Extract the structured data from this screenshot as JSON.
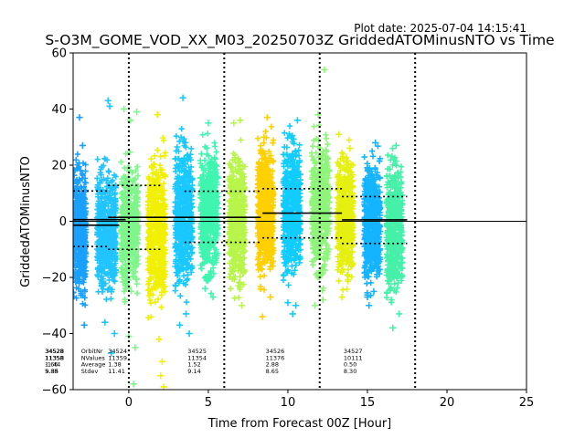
{
  "chart_data": {
    "type": "scatter",
    "title": "S-O3M_GOME_VOD_XX_M03_20250703Z GriddedATOMinusNTO vs Time",
    "plot_date": "Plot date: 2025-07-04 14:15:41",
    "xlabel": "Time from Forecast 00Z [Hour]",
    "ylabel": "GriddedATOMinusNTO",
    "xlim": [
      -3.5,
      25
    ],
    "ylim": [
      -60,
      60
    ],
    "xticks": [
      0,
      5,
      10,
      15,
      20,
      25
    ],
    "yticks": [
      -60,
      -40,
      -20,
      0,
      20,
      40,
      60
    ],
    "xtick_labels": [
      "0",
      "5",
      "10",
      "15",
      "20",
      "25"
    ],
    "ytick_labels": [
      "−60",
      "−40",
      "−20",
      "0",
      "20",
      "40",
      "60"
    ],
    "grid": false,
    "legend": "none",
    "marker": "+",
    "zero_line": 0,
    "forecast_boundaries": [
      0,
      6,
      12,
      18
    ],
    "strips": [
      {
        "x": -3.1,
        "xmin": -3.5,
        "xmax": -2.7,
        "ymin": -32,
        "ymax": 25,
        "color": "#1aa0ff",
        "outliers": [
          [
            -2.9,
            27
          ],
          [
            -2.8,
            -37
          ],
          [
            -3.1,
            37
          ]
        ]
      },
      {
        "x": -1.4,
        "xmin": -2.0,
        "xmax": -0.8,
        "ymin": -32,
        "ymax": 25,
        "color": "#22c4ff",
        "outliers": [
          [
            -1.3,
            43
          ],
          [
            -1.2,
            41
          ],
          [
            -1.1,
            -47
          ],
          [
            -1.5,
            -36
          ],
          [
            -0.9,
            -40
          ]
        ]
      },
      {
        "x": 0.0,
        "xmin": -0.5,
        "xmax": 0.6,
        "ymin": -30,
        "ymax": 26,
        "color": "#7ff58a",
        "outliers": [
          [
            0.4,
            -45
          ],
          [
            0.3,
            -58
          ],
          [
            0.0,
            -41
          ],
          [
            0.1,
            36
          ],
          [
            -0.3,
            40
          ],
          [
            0.5,
            39
          ]
        ]
      },
      {
        "x": 1.7,
        "xmin": 1.2,
        "xmax": 2.3,
        "ymin": -35,
        "ymax": 30,
        "color": "#f0f000",
        "outliers": [
          [
            1.8,
            38
          ],
          [
            2.0,
            -55
          ],
          [
            2.1,
            -50
          ],
          [
            1.9,
            -42
          ],
          [
            2.2,
            -59
          ]
        ]
      },
      {
        "x": 3.5,
        "xmin": 2.9,
        "xmax": 4.0,
        "ymin": -30,
        "ymax": 33,
        "color": "#19c8ff",
        "outliers": [
          [
            3.4,
            44
          ],
          [
            3.8,
            -40
          ],
          [
            3.6,
            -33
          ],
          [
            3.2,
            -37
          ]
        ]
      },
      {
        "x": 5.0,
        "xmin": 4.5,
        "xmax": 5.6,
        "ymin": -26,
        "ymax": 32,
        "color": "#3ff5b0",
        "outliers": [
          [
            5.0,
            35
          ],
          [
            5.3,
            -27
          ],
          [
            4.8,
            -24
          ]
        ]
      },
      {
        "x": 6.8,
        "xmin": 6.3,
        "xmax": 7.3,
        "ymin": -28,
        "ymax": 30,
        "color": "#b8f54a",
        "outliers": [
          [
            6.6,
            35
          ],
          [
            7.1,
            -30
          ],
          [
            7.0,
            36
          ],
          [
            6.9,
            -23
          ]
        ]
      },
      {
        "x": 8.6,
        "xmin": 8.1,
        "xmax": 9.1,
        "ymin": -25,
        "ymax": 34,
        "color": "#ffd000",
        "outliers": [
          [
            8.4,
            -34
          ],
          [
            8.7,
            37
          ],
          [
            8.9,
            -27
          ],
          [
            8.5,
            30
          ]
        ]
      },
      {
        "x": 10.2,
        "xmin": 9.7,
        "xmax": 10.8,
        "ymin": -26,
        "ymax": 34,
        "color": "#10ccff",
        "outliers": [
          [
            10.3,
            -33
          ],
          [
            10.0,
            -29
          ],
          [
            10.6,
            36
          ],
          [
            10.5,
            -30
          ]
        ]
      },
      {
        "x": 12.0,
        "xmin": 11.5,
        "xmax": 12.6,
        "ymin": -25,
        "ymax": 35,
        "color": "#8ff57a",
        "outliers": [
          [
            12.3,
            54
          ],
          [
            11.9,
            38
          ],
          [
            11.7,
            -30
          ],
          [
            12.2,
            -28
          ]
        ]
      },
      {
        "x": 13.6,
        "xmin": 13.1,
        "xmax": 14.1,
        "ymin": -25,
        "ymax": 30,
        "color": "#e6f010",
        "outliers": [
          [
            13.9,
            26
          ],
          [
            13.4,
            -27
          ],
          [
            13.2,
            31
          ]
        ]
      },
      {
        "x": 15.3,
        "xmin": 14.8,
        "xmax": 15.8,
        "ymin": -27,
        "ymax": 27,
        "color": "#14b4ff",
        "outliers": [
          [
            15.1,
            -30
          ],
          [
            15.5,
            28
          ],
          [
            15.0,
            -27
          ],
          [
            15.4,
            -25
          ]
        ]
      },
      {
        "x": 16.7,
        "xmin": 16.2,
        "xmax": 17.2,
        "ymin": -32,
        "ymax": 26,
        "color": "#46f0a8",
        "outliers": [
          [
            16.6,
            -38
          ],
          [
            17.0,
            -33
          ],
          [
            16.5,
            -28
          ],
          [
            16.8,
            27
          ]
        ]
      }
    ],
    "average_lines": [
      {
        "x1": -3.5,
        "x2": -0.2,
        "y": 0.6
      },
      {
        "x1": -1.3,
        "x2": 8.3,
        "y": 1.4
      },
      {
        "x1": 8.4,
        "x2": 13.4,
        "y": 2.9
      },
      {
        "x1": 13.4,
        "x2": 17.5,
        "y": 0.5
      },
      {
        "x1": -3.5,
        "x2": -0.6,
        "y": -1.4
      }
    ],
    "stdev_lines": [
      {
        "x1": -3.5,
        "x2": -1.3,
        "y": 10.8
      },
      {
        "x1": -3.5,
        "x2": -1.3,
        "y": -9.0
      },
      {
        "x1": -1.3,
        "x2": 2.0,
        "y": 12.8
      },
      {
        "x1": -1.3,
        "x2": 2.0,
        "y": -10.0
      },
      {
        "x1": 3.5,
        "x2": 8.3,
        "y": 10.7
      },
      {
        "x1": 3.5,
        "x2": 8.3,
        "y": -7.5
      },
      {
        "x1": 8.4,
        "x2": 13.4,
        "y": 11.6
      },
      {
        "x1": 8.4,
        "x2": 13.4,
        "y": -5.9
      },
      {
        "x1": 13.4,
        "x2": 17.5,
        "y": 8.8
      },
      {
        "x1": 13.4,
        "x2": 17.5,
        "y": -7.9
      }
    ],
    "annotations": [
      {
        "x": -5.2,
        "lines": [
          "34528",
          "11358",
          "1.66",
          "5.88"
        ]
      },
      {
        "x": -5.2,
        "lines": [
          "34528",
          "11358",
          "-1.44",
          "9.35"
        ]
      },
      {
        "x": -3.0,
        "lines": [
          "OrbitNr",
          "NValues",
          "Average",
          "Stdev"
        ]
      },
      {
        "x": -1.3,
        "lines": [
          "34524",
          "11359",
          "1.38",
          "11.41"
        ]
      },
      {
        "x": 3.7,
        "lines": [
          "34525",
          "11354",
          "1.52",
          "9.14"
        ]
      },
      {
        "x": 8.6,
        "lines": [
          "34526",
          "11376",
          "2.88",
          "8.65"
        ]
      },
      {
        "x": 13.5,
        "lines": [
          "34527",
          "10111",
          "0.50",
          "8.30"
        ]
      }
    ]
  }
}
